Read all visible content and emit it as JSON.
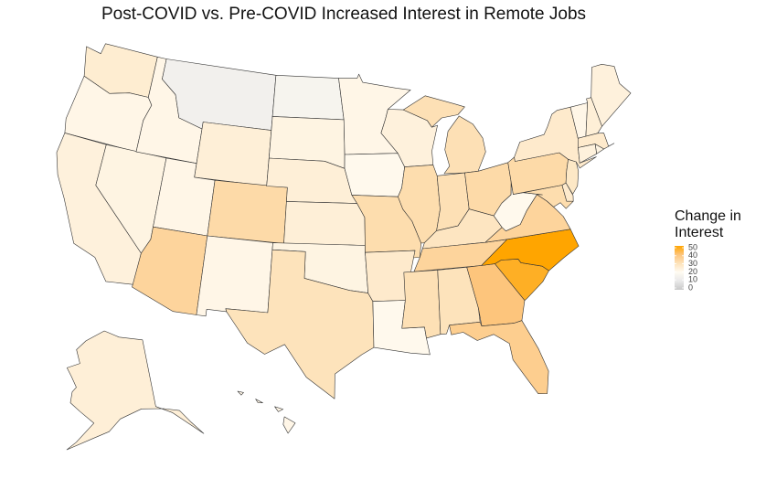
{
  "chart_data": {
    "type": "choropleth",
    "title": "Post-COVID vs. Pre-COVID Increased Interest in Remote Jobs",
    "legend_title": "Change in Interest",
    "values": [
      26,
      22,
      24,
      23,
      22,
      14,
      25,
      22,
      33,
      35,
      22,
      16,
      23,
      25,
      25,
      23,
      30,
      22,
      21,
      32,
      27,
      21,
      24,
      32,
      31,
      31,
      33,
      29,
      35,
      31,
      30,
      40,
      37,
      47,
      52,
      35,
      21,
      32,
      27,
      33,
      28,
      27,
      22,
      25,
      24,
      27,
      23,
      24,
      25,
      22
    ],
    "clim": [
      0,
      50
    ],
    "cticks": [
      0,
      10,
      20,
      30,
      40,
      50
    ],
    "colors": [
      "#c8c8c8",
      "#e9e9e9",
      "#fffbf2",
      "#fde3bb",
      "#fdc57c",
      "#ffa500"
    ]
  }
}
